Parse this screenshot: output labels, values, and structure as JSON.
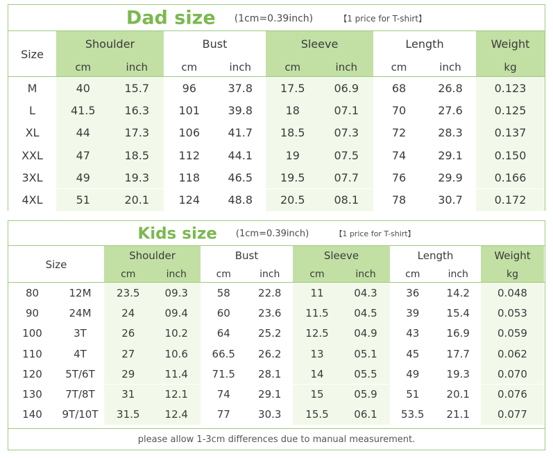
{
  "dad": {
    "title": "Dad size",
    "unit": "(1cm=0.39inch)",
    "note": "【1 price for T-shirt】",
    "size_label": "Size",
    "groups": [
      {
        "label": "Shoulder",
        "sub": [
          "cm",
          "inch"
        ]
      },
      {
        "label": "Bust",
        "sub": [
          "cm",
          "inch"
        ]
      },
      {
        "label": "Sleeve",
        "sub": [
          "cm",
          "inch"
        ]
      },
      {
        "label": "Length",
        "sub": [
          "cm",
          "inch"
        ]
      },
      {
        "label": "Weight",
        "sub": [
          "kg"
        ]
      }
    ],
    "rows": [
      [
        "M",
        "40",
        "15.7",
        "96",
        "37.8",
        "17.5",
        "06.9",
        "68",
        "26.8",
        "0.123"
      ],
      [
        "L",
        "41.5",
        "16.3",
        "101",
        "39.8",
        "18",
        "07.1",
        "70",
        "27.6",
        "0.125"
      ],
      [
        "XL",
        "44",
        "17.3",
        "106",
        "41.7",
        "18.5",
        "07.3",
        "72",
        "28.3",
        "0.137"
      ],
      [
        "XXL",
        "47",
        "18.5",
        "112",
        "44.1",
        "19",
        "07.5",
        "74",
        "29.1",
        "0.150"
      ],
      [
        "3XL",
        "49",
        "19.3",
        "118",
        "46.5",
        "19.5",
        "07.7",
        "76",
        "29.9",
        "0.166"
      ],
      [
        "4XL",
        "51",
        "20.1",
        "124",
        "48.8",
        "20.5",
        "08.1",
        "78",
        "30.7",
        "0.172"
      ]
    ]
  },
  "kids": {
    "title": "Kids size",
    "unit": "(1cm=0.39inch)",
    "note": "【1 price for T-shirt】",
    "size_label": "Size",
    "groups": [
      {
        "label": "Shoulder",
        "sub": [
          "cm",
          "inch"
        ]
      },
      {
        "label": "Bust",
        "sub": [
          "cm",
          "inch"
        ]
      },
      {
        "label": "Sleeve",
        "sub": [
          "cm",
          "inch"
        ]
      },
      {
        "label": "Length",
        "sub": [
          "cm",
          "inch"
        ]
      },
      {
        "label": "Weight",
        "sub": [
          "kg"
        ]
      }
    ],
    "rows": [
      [
        "80",
        "12M",
        "23.5",
        "09.3",
        "58",
        "22.8",
        "11",
        "04.3",
        "36",
        "14.2",
        "0.048"
      ],
      [
        "90",
        "24M",
        "24",
        "09.4",
        "60",
        "23.6",
        "11.5",
        "04.5",
        "39",
        "15.4",
        "0.053"
      ],
      [
        "100",
        "3T",
        "26",
        "10.2",
        "64",
        "25.2",
        "12.5",
        "04.9",
        "43",
        "16.9",
        "0.059"
      ],
      [
        "110",
        "4T",
        "27",
        "10.6",
        "66.5",
        "26.2",
        "13",
        "05.1",
        "45",
        "17.7",
        "0.062"
      ],
      [
        "120",
        "5T/6T",
        "29",
        "11.4",
        "71.5",
        "28.1",
        "14",
        "05.5",
        "49",
        "19.3",
        "0.070"
      ],
      [
        "130",
        "7T/8T",
        "31",
        "12.1",
        "74",
        "29.1",
        "15",
        "05.9",
        "51",
        "20.1",
        "0.076"
      ],
      [
        "140",
        "9T/10T",
        "31.5",
        "12.4",
        "77",
        "30.3",
        "15.5",
        "06.1",
        "53.5",
        "21.1",
        "0.077"
      ]
    ],
    "footer": "please allow 1-3cm differences due to manual measurement."
  }
}
